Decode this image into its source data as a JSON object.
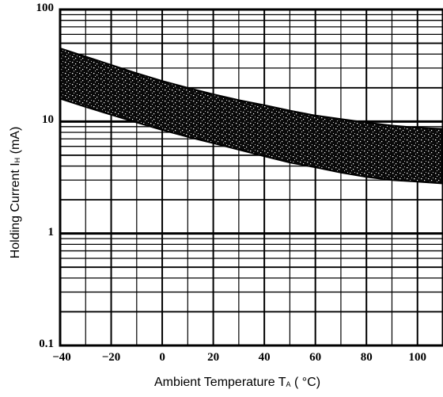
{
  "chart_data": {
    "type": "area",
    "y_scale": "log",
    "xlim": [
      -40,
      110
    ],
    "ylim": [
      0.1,
      100
    ],
    "x_ticks": [
      {
        "value": -40,
        "label": "−40"
      },
      {
        "value": -20,
        "label": "−20"
      },
      {
        "value": 0,
        "label": "0"
      },
      {
        "value": 20,
        "label": "20"
      },
      {
        "value": 40,
        "label": "40"
      },
      {
        "value": 60,
        "label": "60"
      },
      {
        "value": 80,
        "label": "80"
      },
      {
        "value": 100,
        "label": "100"
      }
    ],
    "y_ticks": [
      {
        "value": 100,
        "label": "100"
      },
      {
        "value": 10,
        "label": "10"
      },
      {
        "value": 1,
        "label": "1"
      },
      {
        "value": 0.1,
        "label": "0.1"
      }
    ],
    "grid": true,
    "xlabel": {
      "text": "Ambient Temperature  T",
      "sub": "A",
      "after": " ( °C)"
    },
    "ylabel": {
      "text": "Holding  Current  I",
      "sub": "H",
      "after": " (mA)"
    },
    "band": {
      "x": [
        -40,
        -30,
        -20,
        -10,
        0,
        10,
        20,
        30,
        40,
        50,
        60,
        70,
        80,
        90,
        100,
        110
      ],
      "upper": [
        45,
        38,
        32,
        27,
        23,
        20,
        17.5,
        15.5,
        14,
        12.5,
        11.3,
        10.5,
        9.8,
        9.2,
        8.8,
        8.6
      ],
      "lower": [
        16,
        13.5,
        11.5,
        9.8,
        8.4,
        7.3,
        6.4,
        5.6,
        4.9,
        4.3,
        3.9,
        3.5,
        3.2,
        3.0,
        2.9,
        2.8
      ]
    }
  }
}
